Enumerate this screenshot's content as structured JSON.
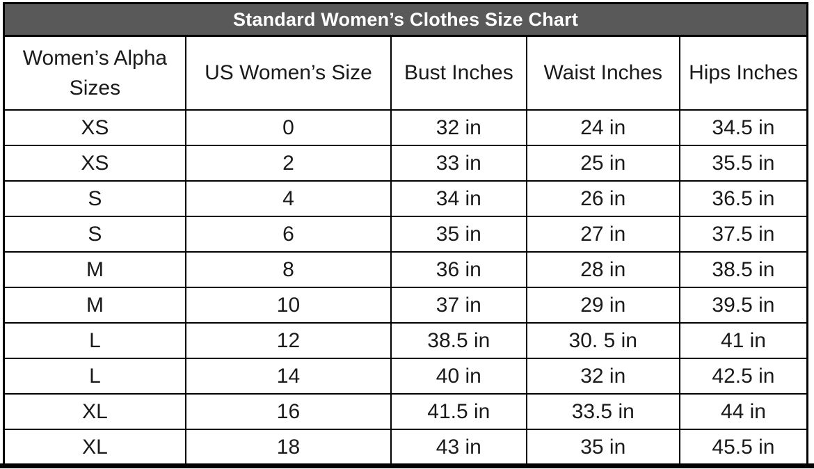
{
  "chart_data": {
    "type": "table",
    "title": "Standard Women’s Clothes Size Chart",
    "columns": [
      "Women’s Alpha Sizes",
      "US Women’s Size",
      "Bust Inches",
      "Waist Inches",
      "Hips Inches"
    ],
    "rows": [
      [
        "XS",
        "0",
        "32 in",
        "24 in",
        "34.5 in"
      ],
      [
        "XS",
        "2",
        "33 in",
        "25 in",
        "35.5 in"
      ],
      [
        "S",
        "4",
        "34 in",
        "26 in",
        "36.5 in"
      ],
      [
        "S",
        "6",
        "35 in",
        "27 in",
        "37.5 in"
      ],
      [
        "M",
        "8",
        "36 in",
        "28 in",
        "38.5 in"
      ],
      [
        "M",
        "10",
        "37 in",
        "29 in",
        "39.5 in"
      ],
      [
        "L",
        "12",
        "38.5 in",
        "30. 5 in",
        "41 in"
      ],
      [
        "L",
        "14",
        "40 in",
        "32 in",
        "42.5 in"
      ],
      [
        "XL",
        "16",
        "41.5 in",
        "33.5 in",
        "44 in"
      ],
      [
        "XL",
        "18",
        "43 in",
        "35 in",
        "45.5 in"
      ]
    ],
    "layout": {
      "grid": true,
      "column_width_percents": [
        22.63,
        25.56,
        16.84,
        19.08,
        15.89
      ]
    }
  },
  "colors": {
    "title_bar_bg": "#595959",
    "title_text": "#ffffff",
    "border": "#000000",
    "cell_text": "#1a1a1a",
    "cell_bg": "#ffffff"
  }
}
